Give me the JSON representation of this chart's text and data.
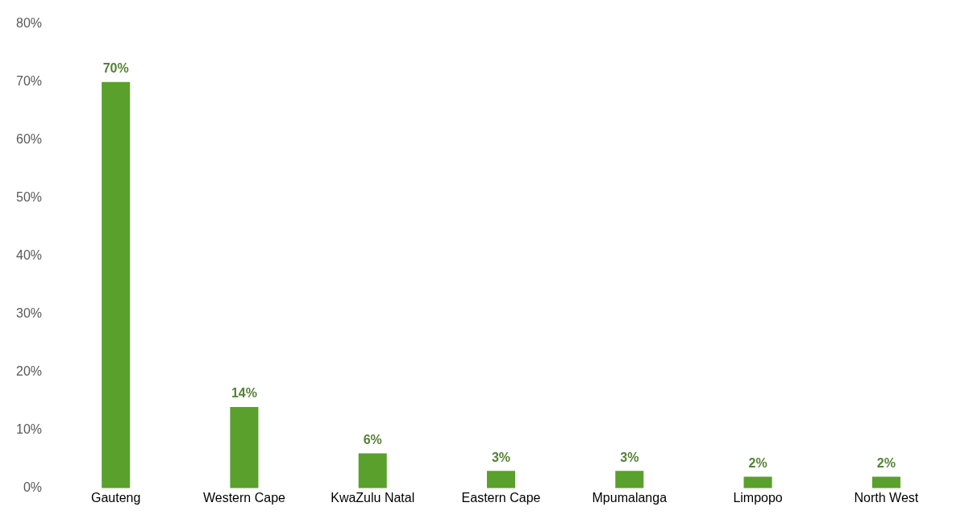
{
  "chart_data": {
    "type": "bar",
    "categories": [
      "Gauteng",
      "Western Cape",
      "KwaZulu Natal",
      "Eastern Cape",
      "Mpumalanga",
      "Limpopo",
      "North West"
    ],
    "values": [
      70,
      14,
      6,
      3,
      3,
      2,
      2
    ],
    "value_labels": [
      "70%",
      "14%",
      "6%",
      "3%",
      "3%",
      "2%",
      "2%"
    ],
    "color": "#5aa02c",
    "ylim": [
      0,
      80
    ],
    "yticks": [
      {
        "value": 0,
        "label": "0%"
      },
      {
        "value": 10,
        "label": "10%"
      },
      {
        "value": 20,
        "label": "20%"
      },
      {
        "value": 30,
        "label": "30%"
      },
      {
        "value": 40,
        "label": "40%"
      },
      {
        "value": 50,
        "label": "50%"
      },
      {
        "value": 60,
        "label": "60%"
      },
      {
        "value": 70,
        "label": "70%"
      },
      {
        "value": 80,
        "label": "80%"
      }
    ]
  }
}
